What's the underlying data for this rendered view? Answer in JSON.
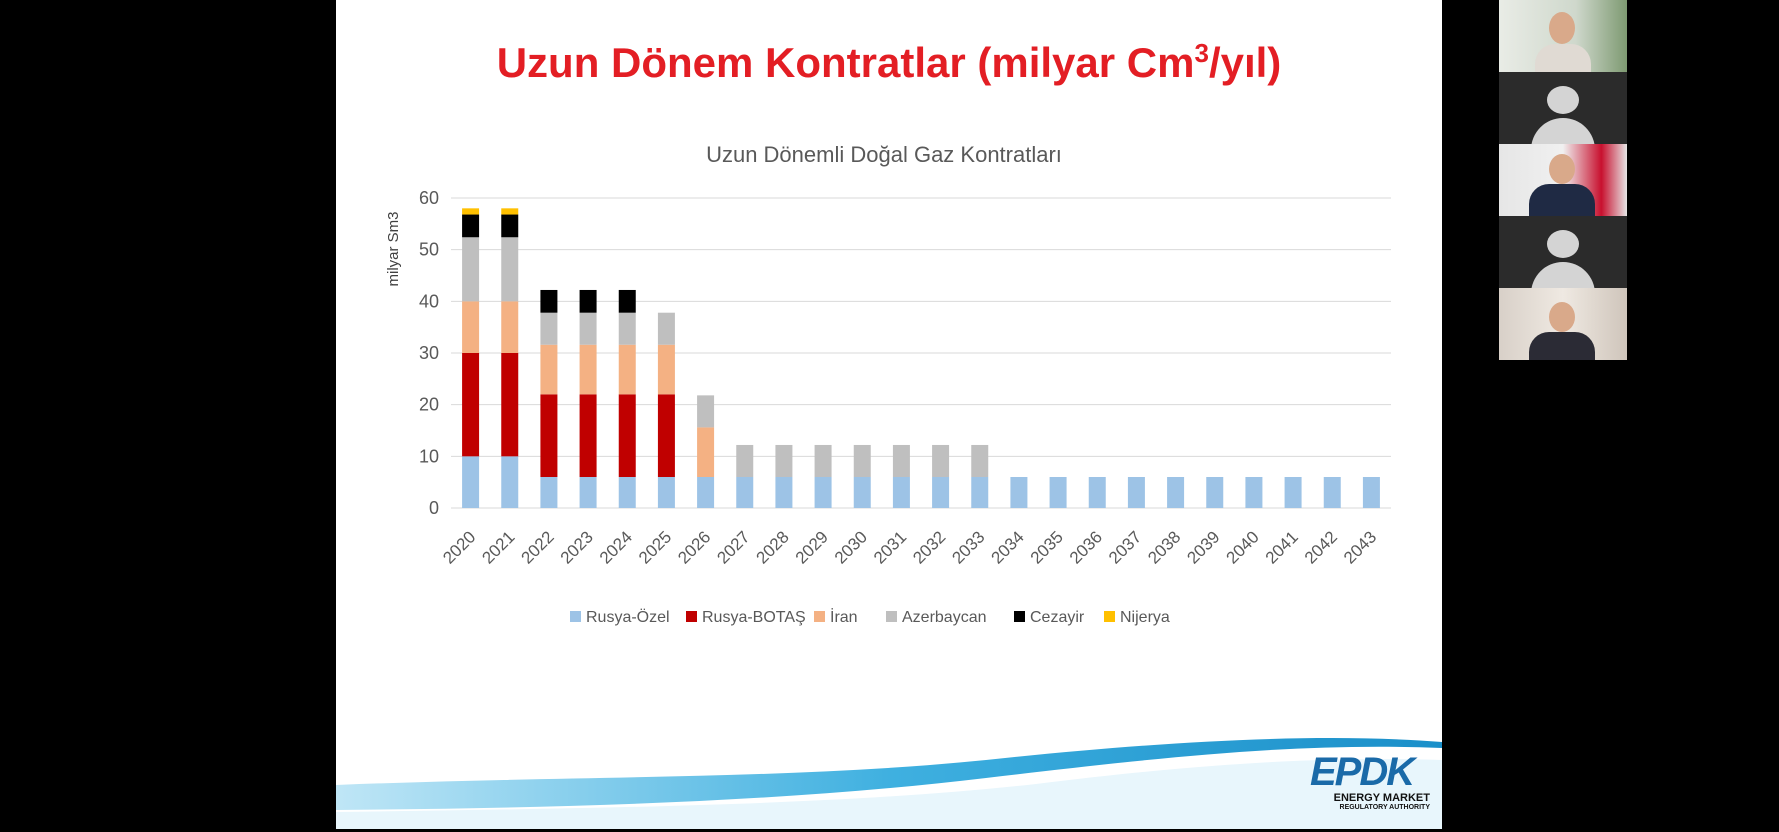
{
  "slide": {
    "title_main": "Uzun Dönem Kontratlar (milyar Cm",
    "title_sup": "3",
    "title_end": "/yıl)",
    "logo_mark": "EPDK",
    "logo_line1": "ENERGY MARKET",
    "logo_line2": "REGULATORY AUTHORITY"
  },
  "colors": {
    "title": "#e31e24",
    "Rusya-Özel": "#9dc3e6",
    "Rusya-BOTAŞ": "#c00000",
    "İran": "#f4b183",
    "Azerbaycan": "#bfbfbf",
    "Cezayir": "#000000",
    "Nijerya": "#ffc000"
  },
  "chart_data": {
    "type": "bar",
    "stacked": true,
    "title": "Uzun Dönemli Doğal Gaz Kontratları",
    "xlabel": "",
    "ylabel": "milyar Sm3",
    "ylim": [
      0,
      60
    ],
    "yticks": [
      0,
      10,
      20,
      30,
      40,
      50,
      60
    ],
    "grid": true,
    "legend_position": "bottom",
    "categories": [
      "2020",
      "2021",
      "2022",
      "2023",
      "2024",
      "2025",
      "2026",
      "2027",
      "2028",
      "2029",
      "2030",
      "2031",
      "2032",
      "2033",
      "2034",
      "2035",
      "2036",
      "2037",
      "2038",
      "2039",
      "2040",
      "2041",
      "2042",
      "2043"
    ],
    "series": [
      {
        "name": "Rusya-Özel",
        "values": [
          10,
          10,
          6,
          6,
          6,
          6,
          6,
          6,
          6,
          6,
          6,
          6,
          6,
          6,
          6,
          6,
          6,
          6,
          6,
          6,
          6,
          6,
          6,
          6
        ]
      },
      {
        "name": "Rusya-BOTAŞ",
        "values": [
          20,
          20,
          16,
          16,
          16,
          16,
          0,
          0,
          0,
          0,
          0,
          0,
          0,
          0,
          0,
          0,
          0,
          0,
          0,
          0,
          0,
          0,
          0,
          0
        ]
      },
      {
        "name": "İran",
        "values": [
          10,
          10,
          9.6,
          9.6,
          9.6,
          9.6,
          9.6,
          0,
          0,
          0,
          0,
          0,
          0,
          0,
          0,
          0,
          0,
          0,
          0,
          0,
          0,
          0,
          0,
          0
        ]
      },
      {
        "name": "Azerbaycan",
        "values": [
          12.4,
          12.4,
          6.2,
          6.2,
          6.2,
          6.2,
          6.2,
          6.2,
          6.2,
          6.2,
          6.2,
          6.2,
          6.2,
          6.2,
          0,
          0,
          0,
          0,
          0,
          0,
          0,
          0,
          0,
          0
        ]
      },
      {
        "name": "Cezayir",
        "values": [
          4.4,
          4.4,
          4.4,
          4.4,
          4.4,
          0,
          0,
          0,
          0,
          0,
          0,
          0,
          0,
          0,
          0,
          0,
          0,
          0,
          0,
          0,
          0,
          0,
          0,
          0
        ]
      },
      {
        "name": "Nijerya",
        "values": [
          1.2,
          1.2,
          0,
          0,
          0,
          0,
          0,
          0,
          0,
          0,
          0,
          0,
          0,
          0,
          0,
          0,
          0,
          0,
          0,
          0,
          0,
          0,
          0,
          0
        ]
      }
    ]
  }
}
